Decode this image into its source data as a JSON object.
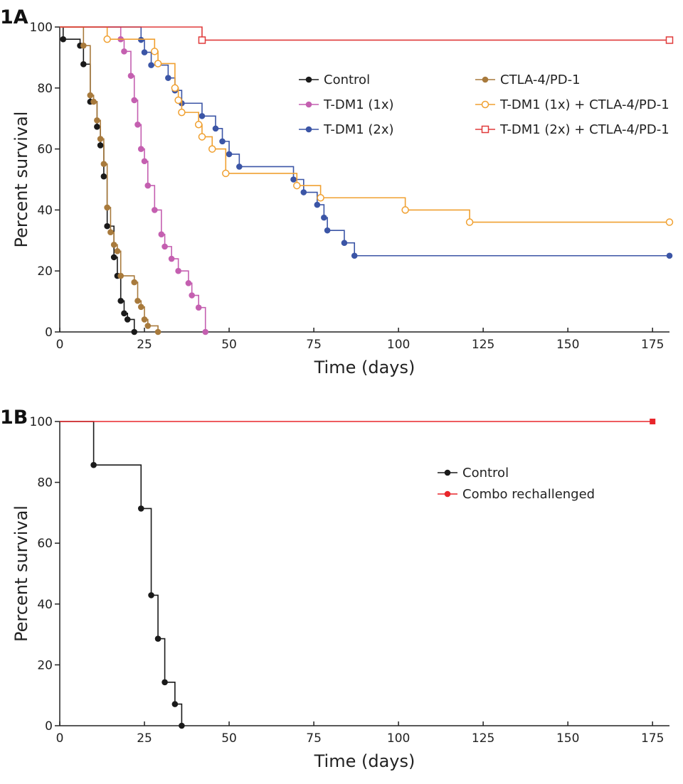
{
  "chart_data": [
    {
      "panel_label": "1A",
      "type": "line",
      "subtype": "kaplan-meier",
      "xlabel": "Time (days)",
      "ylabel": "Percent survival",
      "xlim": [
        0,
        180
      ],
      "ylim": [
        0,
        100
      ],
      "xticks": [
        "0",
        "25",
        "50",
        "75",
        "100",
        "125",
        "150",
        "175"
      ],
      "yticks": [
        "0",
        "20",
        "40",
        "60",
        "80",
        "100"
      ],
      "grid": false,
      "legend_position": "top-right",
      "series": [
        {
          "name": "Control",
          "color": "#1a1a1a",
          "marker": "filled-circle",
          "steps": [
            [
              0,
              100
            ],
            [
              1,
              96
            ],
            [
              6,
              93.9
            ],
            [
              7,
              87.8
            ],
            [
              9,
              75.5
            ],
            [
              11,
              67.3
            ],
            [
              12,
              61.2
            ],
            [
              13,
              51
            ],
            [
              14,
              34.7
            ],
            [
              16,
              24.5
            ],
            [
              17,
              18.4
            ],
            [
              18,
              10.2
            ],
            [
              19,
              6.1
            ],
            [
              20,
              4.1
            ],
            [
              22,
              0
            ]
          ]
        },
        {
          "name": "T-DM1 (1x)",
          "color": "#c45fb0",
          "marker": "filled-circle",
          "steps": [
            [
              0,
              100
            ],
            [
              18,
              96
            ],
            [
              19,
              92
            ],
            [
              21,
              84
            ],
            [
              22,
              76
            ],
            [
              23,
              68
            ],
            [
              24,
              60
            ],
            [
              25,
              56
            ],
            [
              26,
              48
            ],
            [
              28,
              40
            ],
            [
              30,
              32
            ],
            [
              31,
              28
            ],
            [
              33,
              24
            ],
            [
              35,
              20
            ],
            [
              38,
              16
            ],
            [
              39,
              12
            ],
            [
              41,
              8
            ],
            [
              43,
              0
            ]
          ]
        },
        {
          "name": "T-DM1 (2x)",
          "color": "#3b55a6",
          "marker": "filled-circle",
          "steps": [
            [
              0,
              100
            ],
            [
              24,
              95.8
            ],
            [
              25,
              91.7
            ],
            [
              27,
              87.5
            ],
            [
              32,
              83.3
            ],
            [
              34,
              79.2
            ],
            [
              36,
              75
            ],
            [
              42,
              70.8
            ],
            [
              46,
              66.7
            ],
            [
              48,
              62.5
            ],
            [
              50,
              58.3
            ],
            [
              53,
              54.2
            ],
            [
              69,
              50
            ],
            [
              72,
              45.8
            ],
            [
              76,
              41.7
            ],
            [
              78,
              37.5
            ],
            [
              79,
              33.3
            ],
            [
              84,
              29.2
            ],
            [
              87,
              25
            ],
            [
              180,
              25
            ]
          ]
        },
        {
          "name": "CTLA-4/PD-1",
          "color": "#a87a3c",
          "marker": "filled-circle",
          "steps": [
            [
              0,
              100
            ],
            [
              7,
              93.9
            ],
            [
              9,
              77.6
            ],
            [
              10,
              75.5
            ],
            [
              11,
              69.4
            ],
            [
              12,
              63.3
            ],
            [
              13,
              55.1
            ],
            [
              14,
              40.8
            ],
            [
              15,
              32.7
            ],
            [
              16,
              28.6
            ],
            [
              17,
              26.5
            ],
            [
              18,
              18.4
            ],
            [
              22,
              16.3
            ],
            [
              23,
              10.2
            ],
            [
              24,
              8.2
            ],
            [
              25,
              4.1
            ],
            [
              26,
              2
            ],
            [
              29,
              0
            ]
          ]
        },
        {
          "name": "T-DM1 (1x) + CTLA-4/PD-1",
          "color": "#f0a030",
          "marker": "open-circle",
          "steps": [
            [
              0,
              100
            ],
            [
              14,
              96
            ],
            [
              28,
              92
            ],
            [
              29,
              88
            ],
            [
              34,
              80
            ],
            [
              35,
              76
            ],
            [
              36,
              72
            ],
            [
              41,
              68
            ],
            [
              42,
              64
            ],
            [
              45,
              60
            ],
            [
              49,
              52
            ],
            [
              70,
              48
            ],
            [
              77,
              44
            ],
            [
              102,
              40
            ],
            [
              121,
              36
            ],
            [
              180,
              36
            ]
          ]
        },
        {
          "name": "T-DM1 (2x) + CTLA-4/PD-1",
          "color": "#e03a3a",
          "marker": "open-square",
          "steps": [
            [
              0,
              100
            ],
            [
              42,
              95.7
            ],
            [
              180,
              95.7
            ]
          ]
        }
      ]
    },
    {
      "panel_label": "1B",
      "type": "line",
      "subtype": "kaplan-meier",
      "xlabel": "Time (days)",
      "ylabel": "Percent survival",
      "xlim": [
        0,
        180
      ],
      "ylim": [
        0,
        100
      ],
      "xticks": [
        "0",
        "25",
        "50",
        "75",
        "100",
        "125",
        "150",
        "175"
      ],
      "yticks": [
        "0",
        "20",
        "40",
        "60",
        "80",
        "100"
      ],
      "grid": false,
      "legend_position": "right",
      "series": [
        {
          "name": "Control",
          "color": "#1a1a1a",
          "marker": "filled-circle",
          "steps": [
            [
              0,
              100
            ],
            [
              10,
              85.7
            ],
            [
              24,
              71.4
            ],
            [
              27,
              42.9
            ],
            [
              29,
              28.6
            ],
            [
              31,
              14.3
            ],
            [
              34,
              7.1
            ],
            [
              36,
              0
            ]
          ]
        },
        {
          "name": "Combo rechallenged",
          "color": "#e8262b",
          "marker": "filled-square-end",
          "steps": [
            [
              0,
              100
            ],
            [
              175,
              100
            ]
          ]
        }
      ]
    }
  ]
}
